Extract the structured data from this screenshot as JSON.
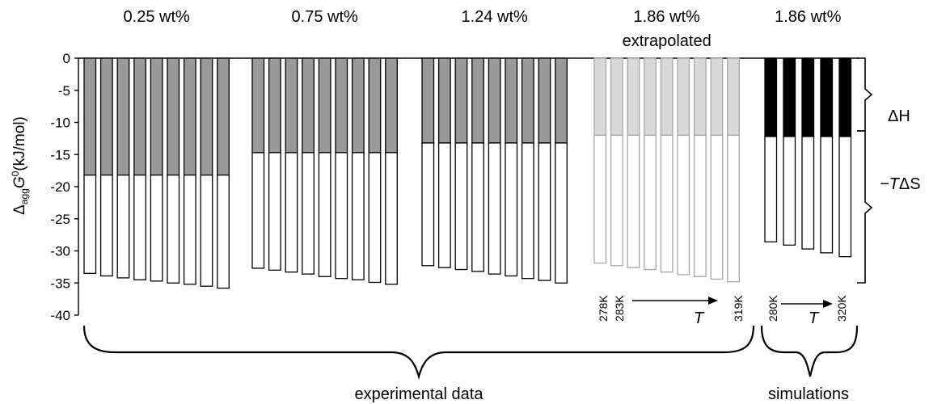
{
  "chart_data": {
    "type": "bar",
    "ylabel_prefix": "Δ",
    "ylabel_sub": "agg",
    "ylabel_var": "G",
    "ylabel_sup": "0",
    "ylabel_unit": "(kJ/mol)",
    "ylim": [
      -40,
      0
    ],
    "yticks": [
      0,
      -5,
      -10,
      -15,
      -20,
      -25,
      -30,
      -35,
      -40
    ],
    "groups": [
      {
        "label": "0.25 wt%",
        "label2": "",
        "style": "experimental",
        "dH": -18.2,
        "dG": [
          -33.5,
          -33.9,
          -34.2,
          -34.5,
          -34.7,
          -35.0,
          -35.2,
          -35.5,
          -35.8
        ]
      },
      {
        "label": "0.75 wt%",
        "label2": "",
        "style": "experimental",
        "dH": -14.7,
        "dG": [
          -32.7,
          -33.0,
          -33.3,
          -33.6,
          -34.0,
          -34.3,
          -34.5,
          -34.9,
          -35.2
        ]
      },
      {
        "label": "1.24 wt%",
        "label2": "",
        "style": "experimental",
        "dH": -13.2,
        "dG": [
          -32.3,
          -32.6,
          -32.9,
          -33.2,
          -33.6,
          -33.9,
          -34.3,
          -34.6,
          -35.0
        ]
      },
      {
        "label": "1.86 wt%",
        "label2": "extrapolated",
        "style": "extrapolated",
        "dH": -12.0,
        "dG": [
          -31.9,
          -32.3,
          -32.6,
          -32.9,
          -33.3,
          -33.7,
          -34.0,
          -34.4,
          -34.8
        ]
      },
      {
        "label": "1.86 wt%",
        "label2": "",
        "style": "simulation",
        "dH": -12.2,
        "dG": [
          -28.6,
          -29.1,
          -29.7,
          -30.3,
          -30.9
        ]
      }
    ],
    "bracket_labels": {
      "enthalpy": "ΔH",
      "entropy_prefix": "−T",
      "entropy_var": "ΔS"
    },
    "temperature_labels": {
      "extrapolated": [
        "278K",
        "283K",
        "319K"
      ],
      "simulation": [
        "280K",
        "320K"
      ],
      "axis": "T"
    },
    "bottom_labels": {
      "experimental": "experimental data",
      "simulations": "simulations"
    },
    "colors": {
      "experimental": "#999999",
      "extrapolated": "#d9d9d9",
      "simulation": "#000000",
      "outline_dark": "#000000",
      "outline_light": "#a6a6a6"
    }
  }
}
